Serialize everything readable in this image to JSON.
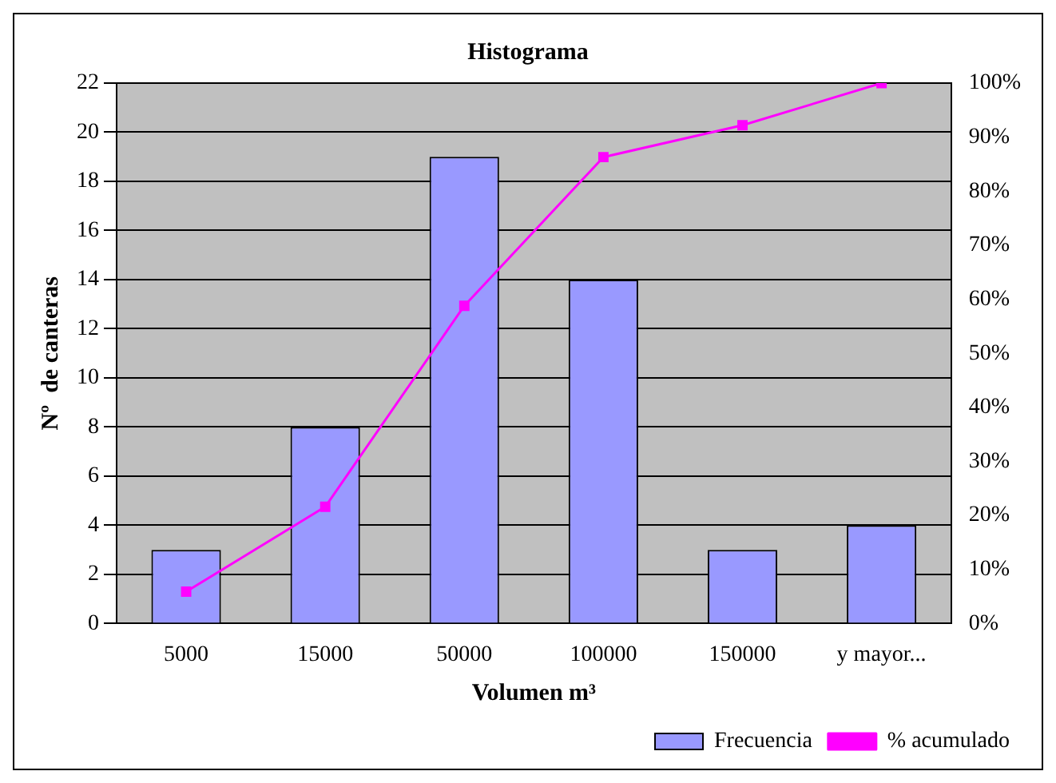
{
  "chart_data": {
    "type": "bar",
    "title": "Histograma",
    "xlabel": "Volumen m³",
    "ylabel": "Nº  de canteras",
    "categories": [
      "5000",
      "15000",
      "50000",
      "100000",
      "150000",
      "y mayor..."
    ],
    "series": [
      {
        "name": "Frecuencia",
        "color": "#9999ff",
        "values": [
          3,
          8,
          19,
          14,
          3,
          4
        ]
      },
      {
        "name": "% acumulado",
        "type": "line",
        "axis": "y2",
        "color": "#ff00ff",
        "values": [
          5.9,
          21.6,
          58.8,
          86.3,
          92.2,
          100
        ]
      }
    ],
    "ylim": [
      0,
      22
    ],
    "yticks": [
      0,
      2,
      4,
      6,
      8,
      10,
      12,
      14,
      16,
      18,
      20,
      22
    ],
    "y2lim": [
      0,
      100
    ],
    "y2ticks": [
      {
        "value": 0,
        "label": "0%"
      },
      {
        "value": 10,
        "label": "10%"
      },
      {
        "value": 20,
        "label": "20%"
      },
      {
        "value": 30,
        "label": "30%"
      },
      {
        "value": 40,
        "label": "40%"
      },
      {
        "value": 50,
        "label": "50%"
      },
      {
        "value": 60,
        "label": "60%"
      },
      {
        "value": 70,
        "label": "70%"
      },
      {
        "value": 80,
        "label": "80%"
      },
      {
        "value": 90,
        "label": "90%"
      },
      {
        "value": 100,
        "label": "100%"
      }
    ],
    "grid": "y",
    "legend": "bottom right",
    "marker": "square",
    "line_style": "solid"
  }
}
